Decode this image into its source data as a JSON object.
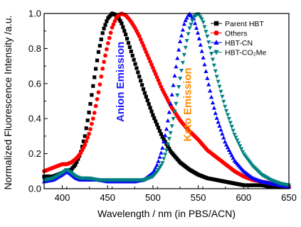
{
  "chart_data": {
    "type": "scatter",
    "xlabel": "Wavelength / nm (in PBS/ACN)",
    "ylabel": "Normalized Fluorescence Intensity /a.u.",
    "xlim": [
      380,
      650
    ],
    "ylim": [
      0,
      1.0
    ],
    "x_ticks": [
      400,
      450,
      500,
      550,
      600,
      650
    ],
    "x_tick_labels": [
      "400",
      "450",
      "500",
      "550",
      "600",
      "650"
    ],
    "y_ticks": [
      0.0,
      0.2,
      0.4,
      0.6,
      0.8,
      1.0
    ],
    "y_tick_labels": [
      "0.0",
      "0.2",
      "0.4",
      "0.6",
      "0.8",
      "1.0"
    ],
    "grid": false,
    "legend_position": "top-right",
    "series": [
      {
        "name": "Parent HBT",
        "color": "#000000",
        "marker": "square",
        "x": [
          380,
          390,
          400,
          405,
          410,
          415,
          420,
          425,
          430,
          435,
          440,
          445,
          450,
          455,
          460,
          465,
          470,
          475,
          480,
          485,
          490,
          495,
          500,
          505,
          510,
          520,
          530,
          540,
          550,
          560,
          570,
          580,
          590,
          600,
          610,
          620,
          630,
          640,
          650
        ],
        "y": [
          0.07,
          0.07,
          0.09,
          0.1,
          0.11,
          0.14,
          0.2,
          0.3,
          0.45,
          0.62,
          0.78,
          0.9,
          0.97,
          1.0,
          0.99,
          0.95,
          0.88,
          0.8,
          0.72,
          0.64,
          0.56,
          0.49,
          0.42,
          0.36,
          0.3,
          0.21,
          0.15,
          0.11,
          0.08,
          0.06,
          0.05,
          0.04,
          0.03,
          0.02,
          0.02,
          0.02,
          0.01,
          0.01,
          0.01
        ]
      },
      {
        "name": "Others",
        "color": "#ff0000",
        "marker": "circle",
        "x": [
          380,
          390,
          400,
          405,
          410,
          415,
          420,
          425,
          430,
          435,
          440,
          445,
          450,
          455,
          460,
          465,
          470,
          475,
          480,
          485,
          490,
          495,
          500,
          505,
          510,
          520,
          530,
          540,
          550,
          560,
          570,
          580,
          590,
          600,
          610,
          620,
          630,
          640,
          650
        ],
        "y": [
          0.1,
          0.12,
          0.14,
          0.14,
          0.15,
          0.17,
          0.2,
          0.25,
          0.32,
          0.42,
          0.55,
          0.7,
          0.82,
          0.92,
          0.98,
          1.0,
          0.99,
          0.96,
          0.92,
          0.87,
          0.81,
          0.75,
          0.69,
          0.63,
          0.57,
          0.47,
          0.39,
          0.33,
          0.28,
          0.22,
          0.18,
          0.14,
          0.1,
          0.07,
          0.05,
          0.04,
          0.03,
          0.02,
          0.01
        ]
      },
      {
        "name": "HBT-CN",
        "color": "#0000ff",
        "marker": "triangle-up",
        "x": [
          380,
          390,
          400,
          405,
          410,
          415,
          420,
          430,
          440,
          450,
          460,
          470,
          480,
          490,
          500,
          505,
          510,
          515,
          520,
          525,
          530,
          535,
          540,
          545,
          550,
          555,
          560,
          565,
          570,
          580,
          590,
          600,
          610,
          620,
          630,
          640,
          650
        ],
        "y": [
          0.04,
          0.05,
          0.08,
          0.1,
          0.08,
          0.06,
          0.05,
          0.05,
          0.05,
          0.04,
          0.04,
          0.04,
          0.04,
          0.05,
          0.09,
          0.14,
          0.22,
          0.34,
          0.5,
          0.68,
          0.84,
          0.95,
          1.0,
          0.97,
          0.88,
          0.76,
          0.63,
          0.51,
          0.41,
          0.26,
          0.16,
          0.1,
          0.06,
          0.04,
          0.03,
          0.02,
          0.01
        ]
      },
      {
        "name": "HBT-CO2Me",
        "color": "#008080",
        "marker": "triangle-down",
        "x": [
          380,
          390,
          400,
          405,
          410,
          415,
          420,
          430,
          440,
          450,
          460,
          470,
          480,
          490,
          500,
          505,
          510,
          515,
          520,
          525,
          530,
          535,
          540,
          545,
          550,
          555,
          560,
          565,
          570,
          580,
          590,
          600,
          610,
          620,
          630,
          640,
          650
        ],
        "y": [
          0.05,
          0.06,
          0.09,
          0.11,
          0.09,
          0.07,
          0.06,
          0.06,
          0.05,
          0.05,
          0.05,
          0.05,
          0.05,
          0.05,
          0.07,
          0.1,
          0.14,
          0.22,
          0.33,
          0.47,
          0.63,
          0.78,
          0.91,
          0.98,
          1.0,
          0.96,
          0.87,
          0.76,
          0.65,
          0.46,
          0.31,
          0.2,
          0.13,
          0.08,
          0.05,
          0.03,
          0.02
        ]
      }
    ],
    "legend": [
      {
        "label": "Parent HBT"
      },
      {
        "label": "Others"
      },
      {
        "label": "HBT-CN"
      },
      {
        "label": "HBT-CO₂Me"
      }
    ],
    "annotations": [
      {
        "text": "Anion Emission",
        "color": "#1a1aff",
        "x": 468,
        "y": 0.61,
        "rotation": -90
      },
      {
        "text": "Keto Emission",
        "color": "#ff8c00",
        "x": 542,
        "y": 0.48,
        "rotation": -90
      }
    ]
  }
}
